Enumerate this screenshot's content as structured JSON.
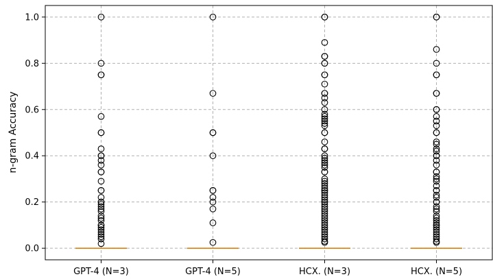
{
  "chart_data": {
    "type": "box",
    "title": "",
    "xlabel": "",
    "ylabel": "n-gram Accuracy",
    "ylim": [
      -0.05,
      1.05
    ],
    "yticks": [
      0.0,
      0.2,
      0.4,
      0.6,
      0.8,
      1.0
    ],
    "ytick_labels": [
      "0.0",
      "0.2",
      "0.4",
      "0.6",
      "0.8",
      "1.0"
    ],
    "grid": true,
    "median_color": "#e07b00",
    "categories": [
      "GPT-4 (N=3)",
      "GPT-4 (N=5)",
      "HCX. (N=3)",
      "HCX. (N=5)"
    ],
    "series": [
      {
        "median": 0.0,
        "fliers": [
          1.0,
          0.8,
          0.75,
          0.75,
          0.57,
          0.5,
          0.5,
          0.43,
          0.4,
          0.4,
          0.38,
          0.36,
          0.33,
          0.33,
          0.29,
          0.25,
          0.25,
          0.22,
          0.2,
          0.2,
          0.19,
          0.18,
          0.17,
          0.16,
          0.14,
          0.13,
          0.12,
          0.1,
          0.1,
          0.09,
          0.08,
          0.07,
          0.06,
          0.05,
          0.04,
          0.02
        ]
      },
      {
        "median": 0.0,
        "fliers": [
          1.0,
          0.67,
          0.5,
          0.5,
          0.4,
          0.25,
          0.25,
          0.22,
          0.2,
          0.17,
          0.11,
          0.025
        ]
      },
      {
        "median": 0.0,
        "fliers": [
          1.0,
          1.0,
          0.89,
          0.83,
          0.83,
          0.8,
          0.8,
          0.75,
          0.75,
          0.71,
          0.67,
          0.67,
          0.65,
          0.63,
          0.6,
          0.58,
          0.57,
          0.56,
          0.55,
          0.54,
          0.53,
          0.5,
          0.5,
          0.46,
          0.43,
          0.43,
          0.4,
          0.39,
          0.38,
          0.37,
          0.36,
          0.35,
          0.33,
          0.33,
          0.3,
          0.29,
          0.28,
          0.27,
          0.26,
          0.25,
          0.25,
          0.24,
          0.23,
          0.22,
          0.21,
          0.2,
          0.2,
          0.19,
          0.18,
          0.17,
          0.16,
          0.15,
          0.14,
          0.13,
          0.12,
          0.11,
          0.1,
          0.09,
          0.08,
          0.07,
          0.06,
          0.05,
          0.04,
          0.03,
          0.025
        ]
      },
      {
        "median": 0.0,
        "fliers": [
          1.0,
          1.0,
          0.86,
          0.8,
          0.75,
          0.75,
          0.67,
          0.67,
          0.6,
          0.6,
          0.57,
          0.55,
          0.53,
          0.5,
          0.5,
          0.46,
          0.45,
          0.43,
          0.42,
          0.4,
          0.4,
          0.38,
          0.36,
          0.33,
          0.33,
          0.31,
          0.3,
          0.29,
          0.27,
          0.25,
          0.25,
          0.23,
          0.22,
          0.2,
          0.2,
          0.18,
          0.17,
          0.16,
          0.14,
          0.13,
          0.12,
          0.11,
          0.1,
          0.1,
          0.09,
          0.08,
          0.07,
          0.06,
          0.05,
          0.04,
          0.03,
          0.025
        ]
      }
    ]
  }
}
